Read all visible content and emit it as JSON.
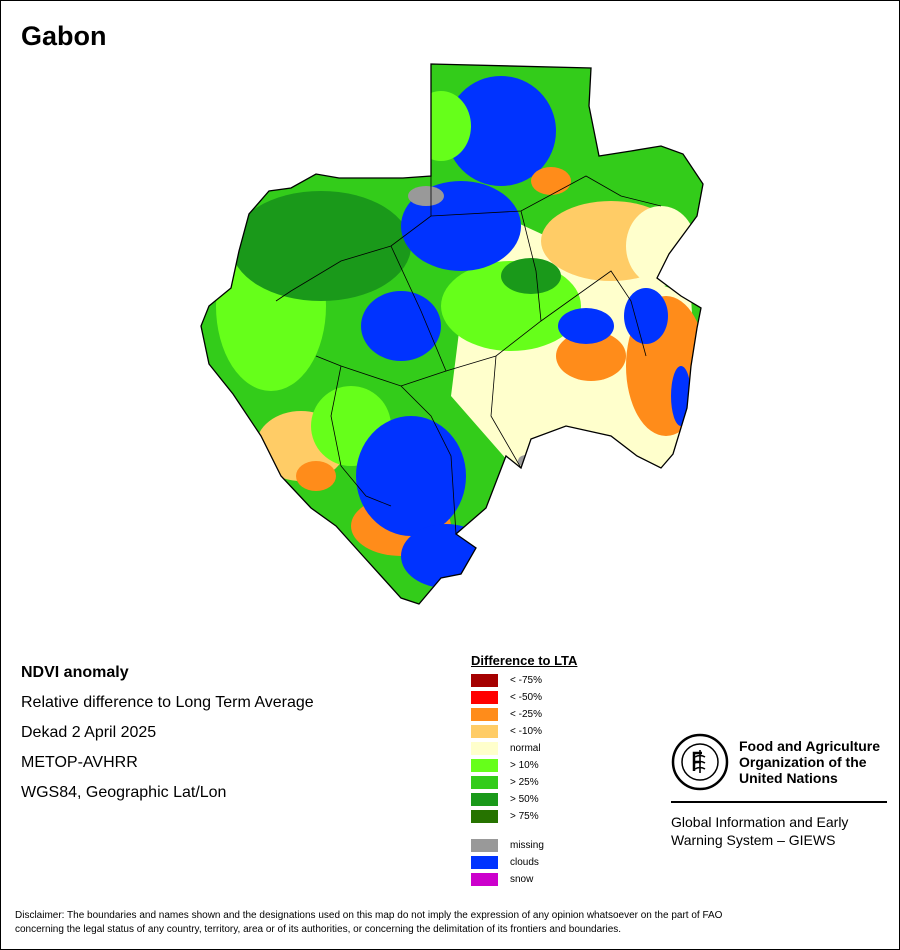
{
  "title": "Gabon",
  "info": {
    "line1": "NDVI anomaly",
    "line2": "Relative difference to Long Term Average",
    "line3": "Dekad 2 April 2025",
    "line4": "METOP-AVHRR",
    "line5": "WGS84, Geographic Lat/Lon"
  },
  "legend": {
    "title": "Difference to LTA",
    "items": [
      {
        "label": "< -75%",
        "color": "#a50000"
      },
      {
        "label": "< -50%",
        "color": "#ff0000"
      },
      {
        "label": "< -25%",
        "color": "#ff8c1a"
      },
      {
        "label": "< -10%",
        "color": "#ffcc66"
      },
      {
        "label": "normal",
        "color": "#ffffcc"
      },
      {
        "label": "> 10%",
        "color": "#66ff1a"
      },
      {
        "label": "> 25%",
        "color": "#33cc1a"
      },
      {
        "label": "> 50%",
        "color": "#1a991a"
      },
      {
        "label": "> 75%",
        "color": "#267300"
      }
    ],
    "extra": [
      {
        "label": "missing",
        "color": "#999999"
      },
      {
        "label": "clouds",
        "color": "#0033ff"
      },
      {
        "label": "snow",
        "color": "#cc00cc"
      }
    ]
  },
  "fao": {
    "name_line1": "Food and Agriculture",
    "name_line2": "Organization of the",
    "name_line3": "United Nations",
    "giews_line1": "Global Information and Early",
    "giews_line2": "Warning System – GIEWS"
  },
  "disclaimer_line1": "Disclaimer: The boundaries and names shown and the designations used on this map do not imply the expression of any opinion whatsoever on the part of FAO",
  "disclaimer_line2": "concerning the legal status of any country, territory, area or of its authorities, or concerning the delimitation of its frontiers and boundaries."
}
